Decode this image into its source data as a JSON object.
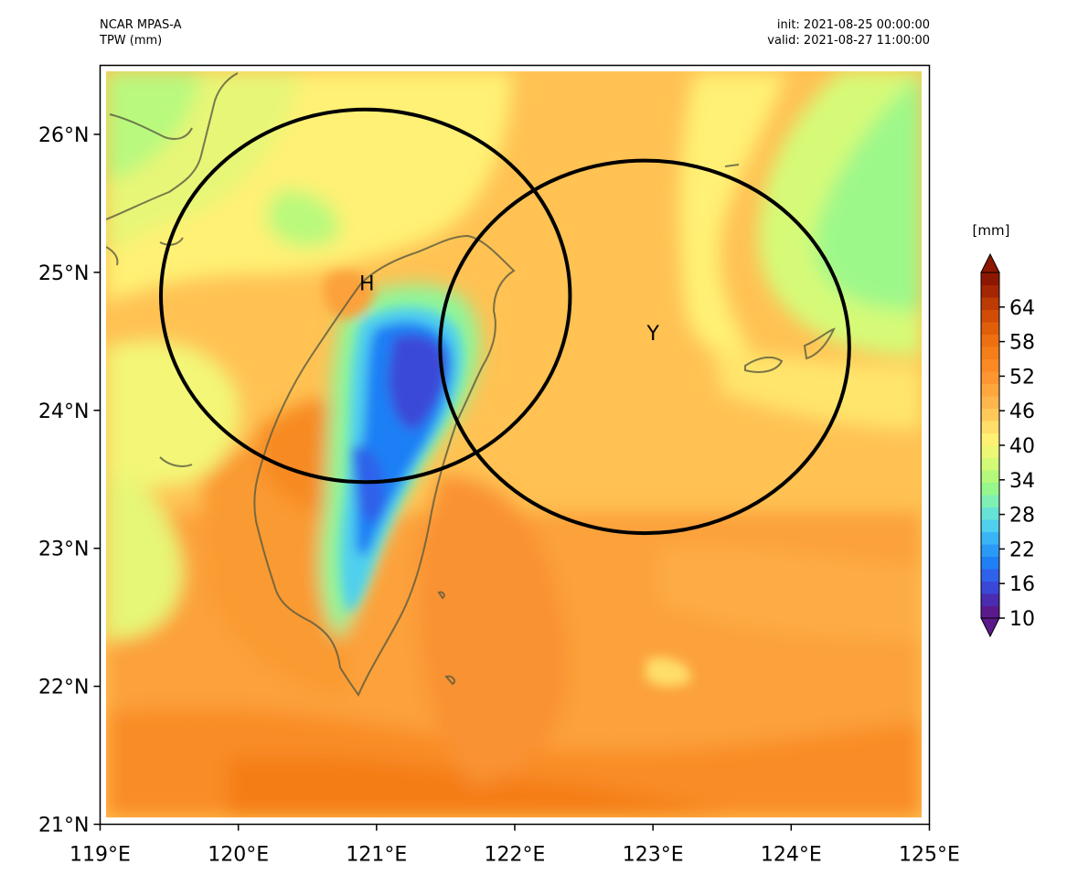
{
  "header": {
    "model": "NCAR MPAS-A",
    "variable": "TPW (mm)",
    "init": "init: 2021-08-25 00:00:00",
    "valid": "valid: 2021-08-27 11:00:00"
  },
  "map": {
    "lon_range": [
      119,
      125
    ],
    "lat_range": [
      21,
      26.5
    ],
    "lon_ticks": [
      {
        "value": 119,
        "label": "119°E"
      },
      {
        "value": 120,
        "label": "120°E"
      },
      {
        "value": 121,
        "label": "121°E"
      },
      {
        "value": 122,
        "label": "122°E"
      },
      {
        "value": 123,
        "label": "123°E"
      },
      {
        "value": 124,
        "label": "124°E"
      },
      {
        "value": 125,
        "label": "125°E"
      }
    ],
    "lat_ticks": [
      {
        "value": 21,
        "label": "21°N"
      },
      {
        "value": 22,
        "label": "22°N"
      },
      {
        "value": 23,
        "label": "23°N"
      },
      {
        "value": 24,
        "label": "24°N"
      },
      {
        "value": 25,
        "label": "25°N"
      },
      {
        "value": 26,
        "label": "26°N"
      }
    ],
    "markers": [
      {
        "label": "H",
        "lon": 120.93,
        "lat": 24.87
      },
      {
        "label": "Y",
        "lon": 123.0,
        "lat": 24.51
      }
    ],
    "circles": [
      {
        "center_lon": 120.92,
        "center_lat": 24.83,
        "radius_lon": 1.48,
        "radius_lat": 1.35
      },
      {
        "center_lon": 122.94,
        "center_lat": 24.46,
        "radius_lon": 1.48,
        "radius_lat": 1.35
      }
    ]
  },
  "colorbar": {
    "unit": "[mm]",
    "range": [
      10,
      70
    ],
    "ticks": [
      "10",
      "16",
      "22",
      "28",
      "34",
      "40",
      "46",
      "52",
      "58",
      "64"
    ],
    "colors": [
      "#5b1a8c",
      "#4a2cb0",
      "#3a48d8",
      "#2f62ea",
      "#1f7ff5",
      "#2b9af7",
      "#39b5f5",
      "#4fd0ee",
      "#66e2d6",
      "#7ff0b3",
      "#96f78d",
      "#b4f97a",
      "#d2fa77",
      "#ecf775",
      "#fff173",
      "#ffde69",
      "#ffc95a",
      "#ffb64c",
      "#ffa63d",
      "#ff9631",
      "#fb8a23",
      "#f57e18",
      "#ee6f10",
      "#e15f0a",
      "#d24c06",
      "#be3a03",
      "#a52702",
      "#8e1701"
    ]
  },
  "colors": {
    "land_outline": "#5a5a40",
    "circle": "#000000"
  }
}
